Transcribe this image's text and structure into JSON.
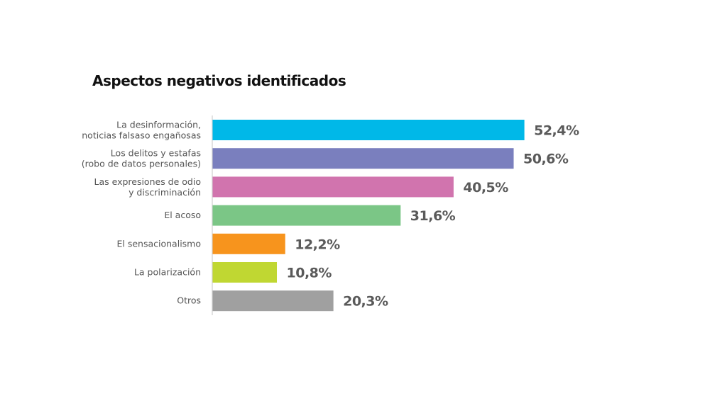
{
  "chart_data": {
    "type": "bar",
    "orientation": "horizontal",
    "title": "Aspectos negativos identificados",
    "categories": [
      [
        "La desinformación,",
        "noticias falsaso engañosas"
      ],
      [
        "Los delitos y estafas",
        "(robo de datos personales)"
      ],
      [
        "Las expresiones de odio",
        "y discriminación"
      ],
      [
        "El acoso"
      ],
      [
        "El sensacionalismo"
      ],
      [
        "La polarización"
      ],
      [
        "Otros"
      ]
    ],
    "values": [
      52.4,
      50.6,
      40.5,
      31.6,
      12.2,
      10.8,
      20.3
    ],
    "value_labels": [
      "52,4%",
      "50,6%",
      "40,5%",
      "31,6%",
      "12,2%",
      "10,8%",
      "20,3%"
    ],
    "colors": [
      "#00b8e8",
      "#7a7fbe",
      "#d174ae",
      "#7bc686",
      "#f7941d",
      "#c0d732",
      "#a0a0a0"
    ],
    "unit": "%",
    "xlim": [
      0,
      55
    ],
    "grid": false,
    "legend": "none"
  }
}
